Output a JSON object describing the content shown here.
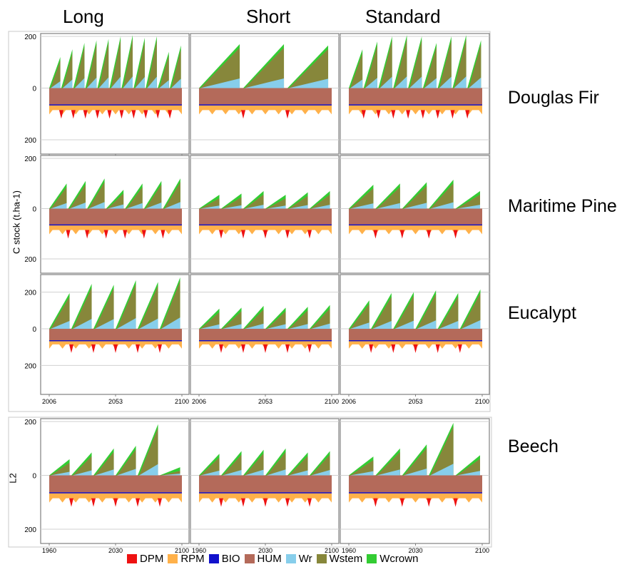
{
  "column_titles": [
    "Long",
    "Short",
    "Standard"
  ],
  "row_titles": [
    "Douglas Fir",
    "Maritime Pine",
    "Eucalypt",
    "Beech"
  ],
  "ylabel_main": "C stock (t.ha-1)",
  "ylabel_beech": "L2",
  "colors": {
    "DPM": "#ee1111",
    "RPM": "#ffb14a",
    "BIO": "#1111cc",
    "HUM": "#b46a5a",
    "Wr": "#87ceeb",
    "Wstem": "#87873b",
    "Wcrown": "#33cc33"
  },
  "legend": [
    "DPM",
    "RPM",
    "BIO",
    "HUM",
    "Wr",
    "Wstem",
    "Wcrown"
  ],
  "chart_data": [
    {
      "type": "area",
      "facet": "Douglas Fir / Long",
      "x_ticks": [
        "2006",
        "2053",
        "2100"
      ],
      "y_ticks": [
        "200",
        "0",
        "200"
      ],
      "ylim": [
        -200,
        200
      ],
      "series": [
        {
          "name": "Wcrown",
          "peaks": [
            120,
            150,
            175,
            185,
            190,
            200,
            205,
            195,
            200,
            140,
            165
          ]
        },
        {
          "name": "HUM",
          "level": -65
        },
        {
          "name": "RPM",
          "level": -85
        }
      ]
    },
    {
      "type": "area",
      "facet": "Douglas Fir / Short",
      "x_ticks": [],
      "y_ticks": [],
      "ylim": [
        -200,
        200
      ],
      "series": [
        {
          "name": "Wcrown",
          "peaks": [
            170,
            170,
            165
          ]
        }
      ]
    },
    {
      "type": "area",
      "facet": "Douglas Fir / Standard",
      "x_ticks": [],
      "y_ticks": [],
      "ylim": [
        -200,
        200
      ],
      "series": [
        {
          "name": "Wcrown",
          "peaks": [
            150,
            180,
            200,
            205,
            200,
            175,
            200,
            205,
            185
          ]
        }
      ]
    },
    {
      "type": "area",
      "facet": "Maritime Pine / Long",
      "x_ticks": [],
      "y_ticks": [
        "200",
        "0",
        "200"
      ],
      "ylim": [
        -200,
        200
      ],
      "series": [
        {
          "name": "Wcrown",
          "peaks": [
            100,
            110,
            120,
            75,
            100,
            110,
            120
          ]
        }
      ]
    },
    {
      "type": "area",
      "facet": "Maritime Pine / Short",
      "x_ticks": [],
      "y_ticks": [],
      "ylim": [
        -200,
        200
      ],
      "series": [
        {
          "name": "Wcrown",
          "peaks": [
            55,
            60,
            70,
            55,
            65,
            70
          ]
        }
      ]
    },
    {
      "type": "area",
      "facet": "Maritime Pine / Standard",
      "x_ticks": [],
      "y_ticks": [],
      "ylim": [
        -200,
        200
      ],
      "series": [
        {
          "name": "Wcrown",
          "peaks": [
            95,
            100,
            105,
            115,
            70
          ]
        }
      ]
    },
    {
      "type": "area",
      "facet": "Eucalypt / Long",
      "x_ticks": [
        "2006",
        "2053",
        "2100"
      ],
      "y_ticks": [
        "200",
        "0",
        "200"
      ],
      "ylim": [
        -280,
        280
      ],
      "series": [
        {
          "name": "Wcrown",
          "peaks": [
            195,
            245,
            240,
            265,
            255,
            280
          ]
        }
      ]
    },
    {
      "type": "area",
      "facet": "Eucalypt / Short",
      "x_ticks": [
        "2006",
        "2053",
        "2100"
      ],
      "y_ticks": [],
      "ylim": [
        -280,
        280
      ],
      "series": [
        {
          "name": "Wcrown",
          "peaks": [
            110,
            115,
            125,
            115,
            120,
            130
          ]
        }
      ]
    },
    {
      "type": "area",
      "facet": "Eucalypt / Standard",
      "x_ticks": [
        "2006",
        "2053",
        "2100"
      ],
      "y_ticks": [],
      "ylim": [
        -280,
        280
      ],
      "series": [
        {
          "name": "Wcrown",
          "peaks": [
            155,
            195,
            200,
            210,
            195,
            215
          ]
        }
      ]
    },
    {
      "type": "area",
      "facet": "Beech / Long",
      "x_ticks": [
        "1960",
        "2030",
        "2100"
      ],
      "y_ticks": [
        "200",
        "0",
        "200"
      ],
      "ylim": [
        -200,
        200
      ],
      "series": [
        {
          "name": "Wcrown",
          "peaks": [
            60,
            85,
            100,
            110,
            190,
            30
          ]
        }
      ]
    },
    {
      "type": "area",
      "facet": "Beech / Short",
      "x_ticks": [
        "1960",
        "2030",
        "2100"
      ],
      "y_ticks": [],
      "ylim": [
        -200,
        200
      ],
      "series": [
        {
          "name": "Wcrown",
          "peaks": [
            80,
            90,
            95,
            100,
            85,
            90
          ]
        }
      ]
    },
    {
      "type": "area",
      "facet": "Beech / Standard",
      "x_ticks": [
        "1960",
        "2030",
        "2100"
      ],
      "y_ticks": [],
      "ylim": [
        -200,
        200
      ],
      "series": [
        {
          "name": "Wcrown",
          "peaks": [
            70,
            100,
            115,
            195,
            75
          ]
        }
      ]
    }
  ]
}
